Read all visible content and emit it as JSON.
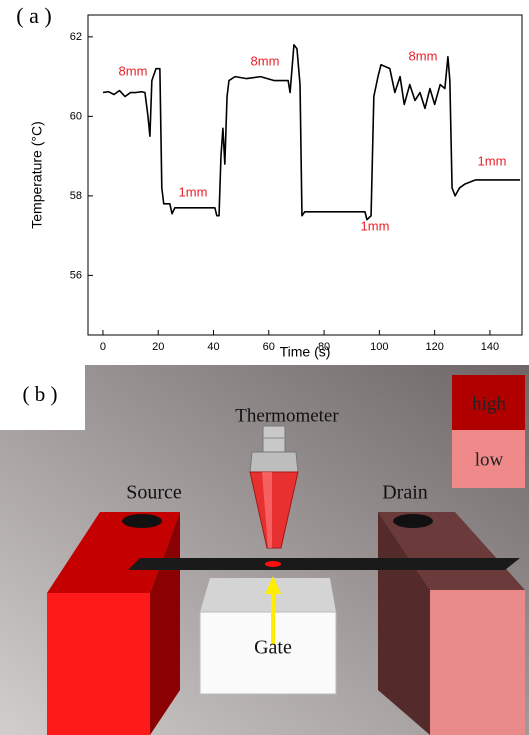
{
  "chart_data": {
    "type": "line",
    "x_label": "Time (s)",
    "y_label": "Temperature (°C)",
    "x": [
      0,
      2,
      4,
      6,
      8,
      10,
      12,
      14,
      15.2,
      16.3,
      17,
      17.7,
      19.2,
      20.6,
      21.3,
      22,
      24.2,
      25,
      26,
      30,
      35,
      40.5,
      41.2,
      42,
      42.7,
      43.4,
      44.1,
      44.9,
      45.6,
      47.8,
      52,
      57,
      62,
      67,
      67.7,
      68.4,
      69.1,
      70.2,
      71.3,
      72,
      73,
      80,
      90,
      94.8,
      95.5,
      97,
      98,
      99.5,
      100.6,
      103.8,
      105.6,
      107.5,
      109,
      111,
      112.9,
      114.7,
      116.5,
      118.3,
      120,
      122,
      123.7,
      124.8,
      125.5,
      126.3,
      127.4,
      129,
      131,
      134.7,
      140,
      145.5,
      150.9
    ],
    "values": [
      60.6,
      60.62,
      60.55,
      60.65,
      60.5,
      60.6,
      60.6,
      60.62,
      60.6,
      60.0,
      59.5,
      60.9,
      61.2,
      61.2,
      58.2,
      57.8,
      57.8,
      57.55,
      57.7,
      57.7,
      57.7,
      57.7,
      57.5,
      57.5,
      59.0,
      59.7,
      58.8,
      60.5,
      60.9,
      61.0,
      60.95,
      61.0,
      60.9,
      60.9,
      60.6,
      61.2,
      61.8,
      61.7,
      60.8,
      57.5,
      57.6,
      57.6,
      57.6,
      57.6,
      57.4,
      57.5,
      60.5,
      61.0,
      61.3,
      61.2,
      60.6,
      61.0,
      60.3,
      60.8,
      60.4,
      60.6,
      60.2,
      60.7,
      60.3,
      60.8,
      60.7,
      61.5,
      60.9,
      58.2,
      58.0,
      58.2,
      58.3,
      58.4,
      58.4,
      58.4,
      58.4
    ],
    "color": "#000000",
    "xlim": [
      -5.4,
      151.6
    ],
    "ylim": [
      54.5,
      62.55
    ],
    "xticks": [
      0,
      20,
      40,
      60,
      80,
      100,
      120,
      140
    ],
    "yticks": [
      56,
      58,
      60,
      62
    ],
    "annotations": [
      "8mm",
      "1mm",
      "8mm",
      "1mm",
      "8mm",
      "1mm"
    ],
    "annotation_color": "#e8202a"
  },
  "figure": {
    "panel_a": "( a )",
    "panel_b": "( b )",
    "diagram": {
      "thermometer": "Thermometer",
      "source": "Source",
      "drain": "Drain",
      "gate": "Gate",
      "high": "high",
      "low": "low"
    }
  }
}
